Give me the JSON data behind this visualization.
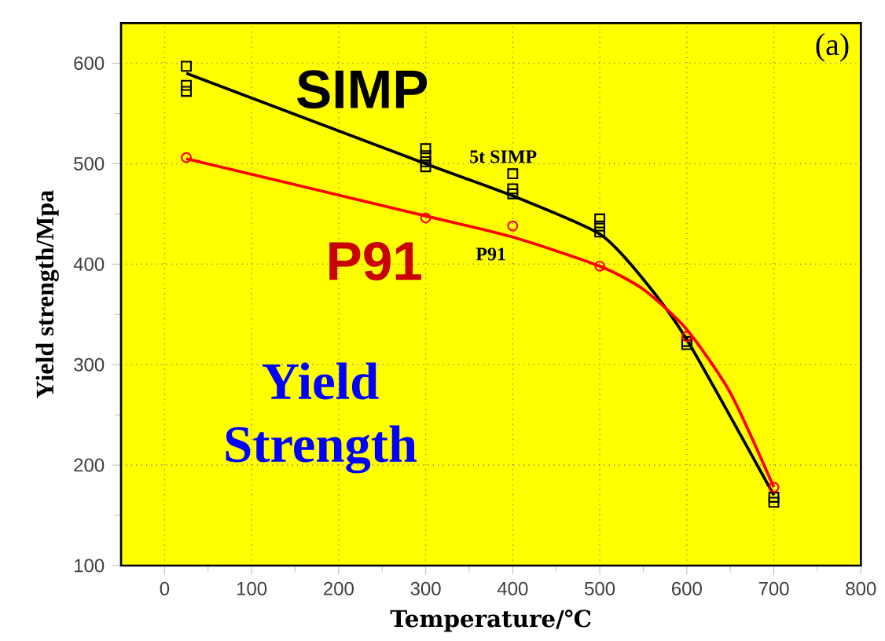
{
  "chart_data": {
    "type": "scatter",
    "xlabel": "Temperature/℃",
    "ylabel": "Yield strength/Mpa",
    "annotations": [
      "SIMP",
      "P91",
      "Yield Strength",
      "(a)"
    ],
    "series": [
      {
        "type": "line",
        "color": "#000000",
        "marker": "none",
        "x": [
          25,
          300,
          400,
          500,
          550,
          600,
          700
        ],
        "values": [
          590,
          500,
          468,
          430,
          385,
          325,
          170
        ]
      },
      {
        "type": "line",
        "color": "#ff0000",
        "marker": "none",
        "x": [
          25,
          300,
          400,
          500,
          550,
          600,
          650,
          700
        ],
        "values": [
          505,
          448,
          427,
          398,
          375,
          335,
          272,
          178
        ]
      },
      {
        "name": "5t SIMP",
        "color": "#000000",
        "marker": "square",
        "x": [
          25,
          25,
          25,
          300,
          300,
          300,
          300,
          400,
          400,
          400,
          500,
          500,
          500,
          600,
          600,
          700,
          700
        ],
        "values": [
          597,
          578,
          572,
          515,
          508,
          502,
          497,
          490,
          475,
          470,
          445,
          438,
          432,
          323,
          320,
          168,
          163
        ]
      },
      {
        "name": "P91",
        "color": "#ff0000",
        "marker": "circle",
        "x": [
          25,
          300,
          400,
          500,
          600,
          700
        ],
        "values": [
          506,
          446,
          438,
          398,
          328,
          178
        ]
      }
    ],
    "xlim": [
      -50,
      800
    ],
    "ylim": [
      100,
      640
    ],
    "xticks": [
      0,
      100,
      200,
      300,
      400,
      500,
      600,
      700,
      800
    ],
    "yticks": [
      100,
      200,
      300,
      400,
      500,
      600
    ],
    "grid": true
  }
}
